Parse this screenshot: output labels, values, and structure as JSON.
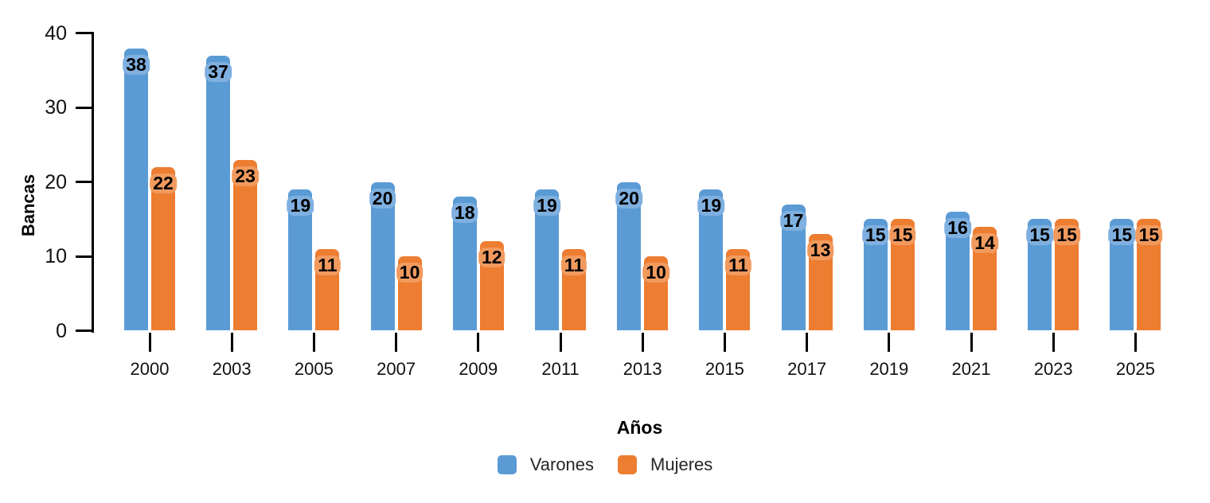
{
  "chart_data": {
    "type": "bar",
    "title": "",
    "xlabel": "Años",
    "ylabel": "Bancas",
    "categories": [
      "2000",
      "2003",
      "2005",
      "2007",
      "2009",
      "2011",
      "2013",
      "2015",
      "2017",
      "2019",
      "2021",
      "2023",
      "2025"
    ],
    "series": [
      {
        "name": "Varones",
        "color": "#5B9BD5",
        "label_bg": "#7FB0E0",
        "values": [
          38,
          37,
          19,
          20,
          18,
          19,
          20,
          19,
          17,
          15,
          16,
          15,
          15
        ]
      },
      {
        "name": "Mujeres",
        "color": "#ED7D31",
        "label_bg": "#F29A5E",
        "values": [
          22,
          23,
          11,
          10,
          12,
          11,
          10,
          11,
          13,
          15,
          14,
          15,
          15
        ]
      }
    ],
    "ylim": [
      0,
      40
    ],
    "yticks": [
      0,
      10,
      20,
      30,
      40
    ],
    "grid": false,
    "legend_position": "bottom",
    "data_labels": true,
    "axis_color": "#000000",
    "text_color": "#1a1a1a"
  }
}
